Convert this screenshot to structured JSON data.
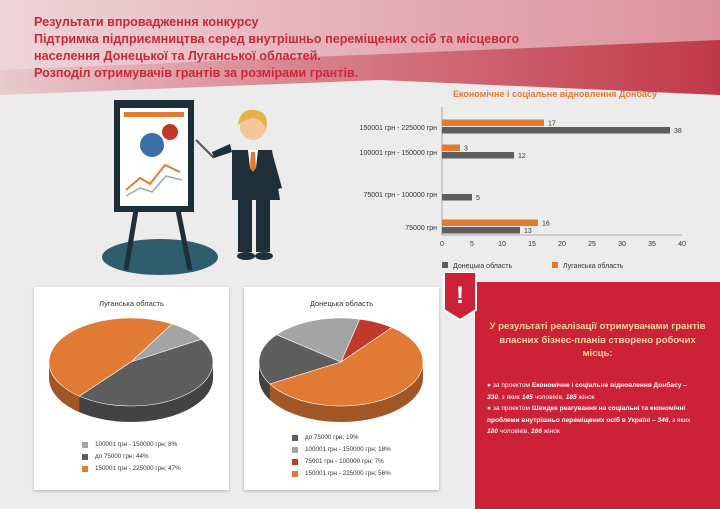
{
  "header": {
    "lines": [
      "Результати впровадження конкурсу",
      "Підтримка підприємництва серед внутрішньо переміщених осіб та місцевого",
      "населення Донецької та Луганської областей.",
      "Розподіл отримувачів грантів за розмірами грантів."
    ]
  },
  "colors": {
    "donetsk": "#5d5d5d",
    "luhansk": "#e07a34",
    "light_gray": "#a4a4a4",
    "dark_red": "#c0392b",
    "accent_red": "#cc2136"
  },
  "chart_data": [
    {
      "type": "bar",
      "orientation": "horizontal",
      "title": "Економічне і соціальне відновлення Донбасу",
      "categories": [
        "150001 грн - 225000 грн",
        "100001 грн - 150000 грн",
        "75001 грн - 100000 грн",
        "75000 грн"
      ],
      "series": [
        {
          "name": "Донецька область",
          "color": "#5d5d5d",
          "values": [
            38,
            12,
            5,
            13
          ]
        },
        {
          "name": "Луганська область",
          "color": "#e07a34",
          "values": [
            17,
            3,
            null,
            16
          ]
        }
      ],
      "xlim": [
        0,
        40
      ],
      "xticks": [
        "0",
        "5",
        "10",
        "15",
        "20",
        "25",
        "30",
        "35",
        "40"
      ],
      "legend_position": "bottom"
    },
    {
      "type": "pie",
      "title": "Луганська область",
      "slices": [
        {
          "label": "100001 грн - 150000 грн; 8%",
          "value": 8,
          "color": "#a4a4a4"
        },
        {
          "label": "до 75000 грн; 44%",
          "value": 44,
          "color": "#5d5d5d"
        },
        {
          "label": "150001 грн - 225000 грн; 47%",
          "value": 47,
          "color": "#e07a34"
        }
      ]
    },
    {
      "type": "pie",
      "title": "Донецька область",
      "slices": [
        {
          "label": "до 75000 грн; 19%",
          "value": 19,
          "color": "#5d5d5d"
        },
        {
          "label": "100001 грн - 150000 грн; 18%",
          "value": 18,
          "color": "#a4a4a4"
        },
        {
          "label": "75001 грн - 100000 грн; 7%",
          "value": 7,
          "color": "#c0392b"
        },
        {
          "label": "150001 грн - 225000 грн; 56%",
          "value": 56,
          "color": "#e07a34"
        }
      ]
    }
  ],
  "info": {
    "icon_text": "!",
    "headline": "У результаті реалізації отримувачами грантів власних бізнес-планів створено робочих місць:",
    "p1": {
      "pre": "за проектом",
      "project": "Економічне і соціальне відновлення Донбасу",
      "dash": " – ",
      "total": "330",
      "mid": ", з яких ",
      "men": "145",
      "men_label": " чоловіків, ",
      "women": "185",
      "women_label": " жінок"
    },
    "p2": {
      "pre": "за проектом",
      "project": "Швидке реагування на соціальні та економічні проблеми внутрішньо переміщених осіб в Україні",
      "dash": " – ",
      "total": "346",
      "mid": ", з яких ",
      "men": "180",
      "men_label": " чоловіків, ",
      "women": "166",
      "women_label": " жінок"
    }
  }
}
